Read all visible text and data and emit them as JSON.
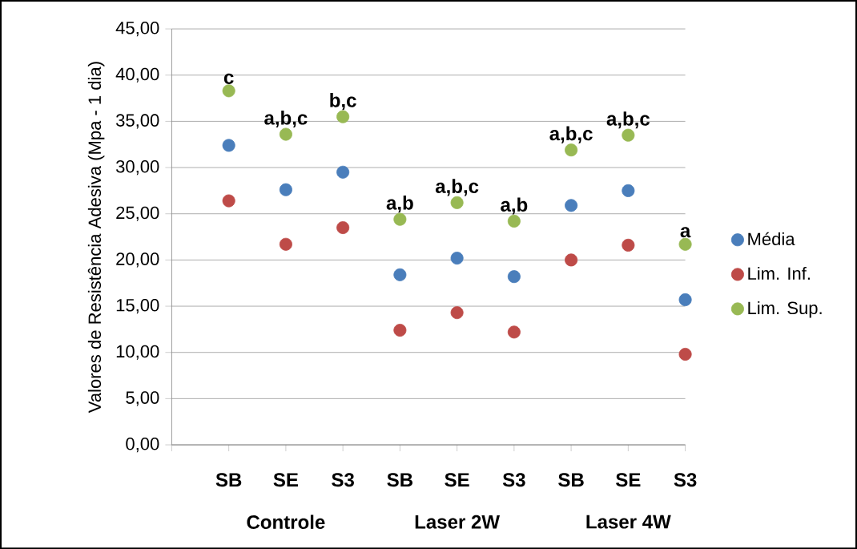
{
  "chart_data": {
    "type": "scatter",
    "ylabel": "Valores de Resistência Adesiva (Mpa - 1 dia)",
    "categories": [
      "SB",
      "SE",
      "S3",
      "SB",
      "SE",
      "S3",
      "SB",
      "SE",
      "S3"
    ],
    "annotations": [
      "Controle",
      "Laser 2W",
      "Laser 4W"
    ],
    "series": [
      {
        "name": "Média",
        "color": "#4a7ebb",
        "values": [
          32.4,
          27.6,
          29.5,
          18.4,
          20.2,
          18.2,
          25.9,
          27.5,
          15.7
        ]
      },
      {
        "name": "Lim. Inf.",
        "color": "#be4b48",
        "values": [
          26.4,
          21.7,
          23.5,
          12.4,
          14.3,
          12.2,
          20.0,
          21.6,
          9.8
        ]
      },
      {
        "name": "Lim. Sup.",
        "color": "#98b954",
        "values": [
          38.3,
          33.6,
          35.5,
          24.4,
          26.2,
          24.2,
          31.9,
          33.5,
          21.7
        ],
        "value_labels": [
          "c",
          "a,b,c",
          "b,c",
          "a,b",
          "a,b,c",
          "a,b",
          "a,b,c",
          "a,b,c",
          "a"
        ]
      }
    ],
    "ylim": [
      0,
      45
    ],
    "yticks": [
      {
        "value": 0,
        "label": "0,00"
      },
      {
        "value": 5,
        "label": "5,00"
      },
      {
        "value": 10,
        "label": "10,00"
      },
      {
        "value": 15,
        "label": "15,00"
      },
      {
        "value": 20,
        "label": "20,00"
      },
      {
        "value": 25,
        "label": "25,00"
      },
      {
        "value": 30,
        "label": "30,00"
      },
      {
        "value": 35,
        "label": "35,00"
      },
      {
        "value": 40,
        "label": "40,00"
      },
      {
        "value": 45,
        "label": "45,00"
      }
    ],
    "grid": "y",
    "legend": "right",
    "marker": "circle"
  }
}
